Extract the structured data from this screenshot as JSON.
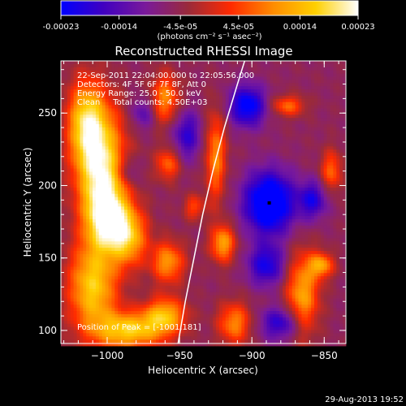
{
  "chart_data": {
    "type": "heatmap",
    "title": "Reconstructed RHESSI Image",
    "xlabel": "Heliocentric X (arcsec)",
    "ylabel": "Heliocentric Y (arcsec)",
    "xlim": [
      -1032,
      -835
    ],
    "ylim": [
      91,
      286
    ],
    "x_ticks": [
      -1000,
      -950,
      -900,
      -850
    ],
    "y_ticks": [
      100,
      150,
      200,
      250
    ],
    "x_tick_labels": [
      "−1000",
      "−950",
      "−900",
      "−850"
    ],
    "y_tick_labels": [
      "100",
      "150",
      "200",
      "250"
    ],
    "colorbar": {
      "min": -0.00023,
      "max": 0.00023,
      "tick_values": [
        -0.00023,
        -0.00014,
        -4.5e-05,
        4.5e-05,
        0.00014,
        0.00023
      ],
      "tick_labels": [
        "-0.00023",
        "-0.00014",
        "-4.5e-05",
        "4.5e-05",
        "0.00014",
        "0.00023"
      ],
      "unit_label": "(photons cm⁻² s⁻¹ asec⁻²)",
      "colors": [
        "#0000ff",
        "#4000c0",
        "#7a1a9a",
        "#9a2a3a",
        "#ff2a00",
        "#ff8c00",
        "#ffd000",
        "#ffffff"
      ]
    },
    "annotations": [
      "22-Sep-2011 22:04:00.000 to 22:05:56.000",
      "Detectors: 4F 5F 6F 7F 8F, Att 0",
      "Energy Range: 25.0 - 50.0 keV",
      "Clean     Total counts: 4.50E+03"
    ],
    "peak_label": "Position of Peak = [-1001,181]",
    "peak": [
      -1001,
      181
    ],
    "limb_curve": [
      [
        -951,
        91
      ],
      [
        -946,
        120
      ],
      [
        -940,
        150
      ],
      [
        -934,
        180
      ],
      [
        -927,
        210
      ],
      [
        -919,
        240
      ],
      [
        -910,
        270
      ],
      [
        -905,
        286
      ]
    ],
    "minimum_marker": [
      -888,
      188
    ],
    "hot_blobs": [
      {
        "x": -1005,
        "y": 215,
        "sx": 12,
        "sy": 28,
        "amp": 1.0
      },
      {
        "x": -1000,
        "y": 178,
        "sx": 10,
        "sy": 16,
        "amp": 0.9
      },
      {
        "x": -985,
        "y": 165,
        "sx": 9,
        "sy": 14,
        "amp": 0.75
      },
      {
        "x": -1015,
        "y": 245,
        "sx": 9,
        "sy": 20,
        "amp": 0.7
      },
      {
        "x": -1010,
        "y": 130,
        "sx": 12,
        "sy": 22,
        "amp": 0.85
      },
      {
        "x": -985,
        "y": 100,
        "sx": 16,
        "sy": 9,
        "amp": 0.85
      },
      {
        "x": -960,
        "y": 110,
        "sx": 10,
        "sy": 9,
        "amp": 0.75
      },
      {
        "x": -958,
        "y": 147,
        "sx": 8,
        "sy": 10,
        "amp": 0.65
      },
      {
        "x": -960,
        "y": 260,
        "sx": 7,
        "sy": 12,
        "amp": 0.6
      },
      {
        "x": -958,
        "y": 215,
        "sx": 6,
        "sy": 8,
        "amp": 0.5
      },
      {
        "x": -925,
        "y": 220,
        "sx": 5,
        "sy": 22,
        "amp": 0.6
      },
      {
        "x": -920,
        "y": 160,
        "sx": 6,
        "sy": 9,
        "amp": 0.7
      },
      {
        "x": -912,
        "y": 105,
        "sx": 8,
        "sy": 10,
        "amp": 0.6
      },
      {
        "x": -865,
        "y": 125,
        "sx": 8,
        "sy": 20,
        "amp": 0.7
      },
      {
        "x": -852,
        "y": 145,
        "sx": 6,
        "sy": 6,
        "amp": 0.65
      },
      {
        "x": -845,
        "y": 210,
        "sx": 5,
        "sy": 10,
        "amp": 0.5
      },
      {
        "x": -875,
        "y": 255,
        "sx": 8,
        "sy": 5,
        "amp": 0.5
      },
      {
        "x": -940,
        "y": 185,
        "sx": 5,
        "sy": 6,
        "amp": 0.4
      }
    ],
    "cold_blobs": [
      {
        "x": -888,
        "y": 188,
        "sx": 12,
        "sy": 15,
        "amp": 1.0
      },
      {
        "x": -903,
        "y": 255,
        "sx": 9,
        "sy": 10,
        "amp": 0.75
      },
      {
        "x": -890,
        "y": 145,
        "sx": 9,
        "sy": 10,
        "amp": 0.6
      },
      {
        "x": -880,
        "y": 105,
        "sx": 10,
        "sy": 8,
        "amp": 0.55
      },
      {
        "x": -858,
        "y": 190,
        "sx": 7,
        "sy": 9,
        "amp": 0.55
      },
      {
        "x": -945,
        "y": 235,
        "sx": 7,
        "sy": 12,
        "amp": 0.5
      },
      {
        "x": -975,
        "y": 250,
        "sx": 6,
        "sy": 8,
        "amp": 0.35
      },
      {
        "x": -985,
        "y": 210,
        "sx": 5,
        "sy": 7,
        "amp": 0.3
      }
    ]
  },
  "footer_date": "29-Aug-2013 19:52"
}
